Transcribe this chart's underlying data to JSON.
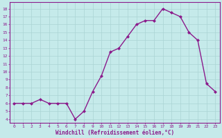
{
  "x": [
    0,
    1,
    2,
    3,
    4,
    5,
    6,
    7,
    8,
    9,
    10,
    11,
    12,
    13,
    14,
    15,
    16,
    17,
    18,
    19,
    20,
    21,
    22,
    23
  ],
  "y": [
    6,
    6,
    6,
    6.5,
    6,
    6,
    6,
    4,
    5,
    7.5,
    9.5,
    12.5,
    13,
    14.5,
    16,
    16.5,
    16.5,
    18,
    17.5,
    17,
    15,
    14,
    8.5,
    7.5
  ],
  "line_color": "#8b1a8b",
  "marker_color": "#8b1a8b",
  "bg_color": "#c5eaea",
  "grid_color": "#aad4d4",
  "xlabel": "Windchill (Refroidissement éolien,°C)",
  "xlabel_color": "#8b1a8b",
  "ylabel_ticks": [
    4,
    5,
    6,
    7,
    8,
    9,
    10,
    11,
    12,
    13,
    14,
    15,
    16,
    17,
    18
  ],
  "xtick_labels": [
    "0",
    "1",
    "2",
    "3",
    "4",
    "5",
    "6",
    "7",
    "8",
    "9",
    "10",
    "11",
    "12",
    "13",
    "14",
    "15",
    "16",
    "17",
    "18",
    "19",
    "20",
    "21",
    "22",
    "23"
  ],
  "ylim": [
    3.5,
    18.8
  ],
  "xlim": [
    -0.5,
    23.5
  ],
  "tick_color": "#8b1a8b",
  "spine_color": "#8b1a8b",
  "linewidth": 1.0,
  "markersize": 2.0
}
